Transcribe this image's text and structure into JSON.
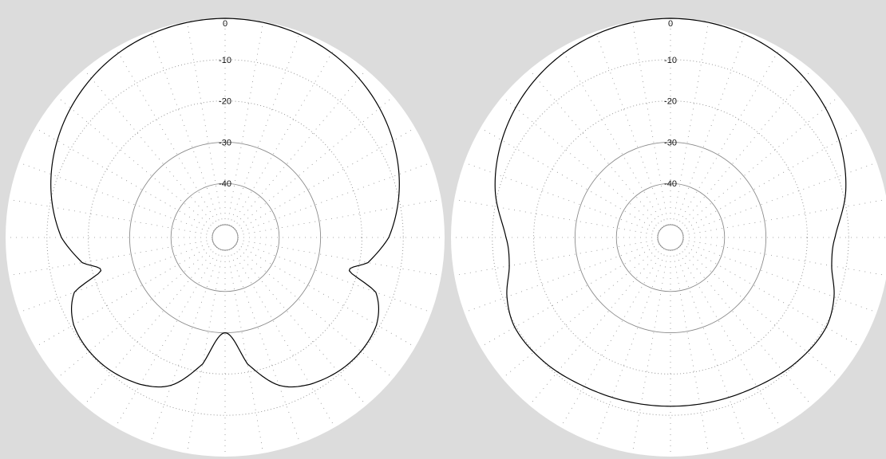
{
  "background_color": "#dcdcdc",
  "plot_face_color": "#ffffff",
  "grid_color": "#8c8c8c",
  "trace_color": "#000000",
  "chart_data": [
    {
      "type": "polar-line",
      "rlim": [
        -50,
        0
      ],
      "r_ticks": [
        0,
        -10,
        -20,
        -30,
        -40
      ],
      "r_tick_labels": [
        "0",
        "-10",
        "-20",
        "-30",
        "-40"
      ],
      "grid": true,
      "angle_grid_step_deg": 10,
      "series": [
        {
          "angles_deg": [
            0,
            15,
            30,
            45,
            60,
            75,
            90,
            100,
            105,
            110,
            120,
            135,
            150,
            160,
            170,
            175,
            180,
            185,
            190,
            200,
            210,
            225,
            240,
            250,
            255,
            260,
            270,
            285,
            300,
            315,
            330,
            345,
            360
          ],
          "values_db": [
            0,
            -0.4,
            -1.5,
            -3.5,
            -6.2,
            -9.5,
            -13.5,
            -18,
            -22,
            -14.3,
            -10.8,
            -10.3,
            -12,
            -15,
            -22,
            -28,
            -30,
            -28,
            -22,
            -15,
            -12,
            -10.3,
            -10.8,
            -14.3,
            -22,
            -18,
            -13.5,
            -9.5,
            -6.2,
            -3.5,
            -1.5,
            -0.4,
            0
          ]
        }
      ]
    },
    {
      "type": "polar-line",
      "rlim": [
        -50,
        0
      ],
      "r_ticks": [
        0,
        -10,
        -20,
        -30,
        -40
      ],
      "r_tick_labels": [
        "0",
        "-10",
        "-20",
        "-30",
        "-40"
      ],
      "grid": true,
      "angle_grid_step_deg": 10,
      "series": [
        {
          "angles_deg": [
            0,
            15,
            30,
            45,
            60,
            75,
            90,
            100,
            110,
            120,
            135,
            150,
            165,
            180,
            195,
            210,
            225,
            240,
            250,
            260,
            270,
            285,
            300,
            315,
            330,
            345,
            360
          ],
          "values_db": [
            0,
            -0.4,
            -1.5,
            -3.4,
            -6,
            -9.2,
            -13.3,
            -13.5,
            -11,
            -9.6,
            -10.2,
            -11.4,
            -12,
            -12.2,
            -12,
            -11.4,
            -10.2,
            -9.6,
            -11,
            -13.5,
            -13.3,
            -9.2,
            -6,
            -3.4,
            -1.5,
            -0.4,
            0
          ]
        }
      ]
    }
  ]
}
